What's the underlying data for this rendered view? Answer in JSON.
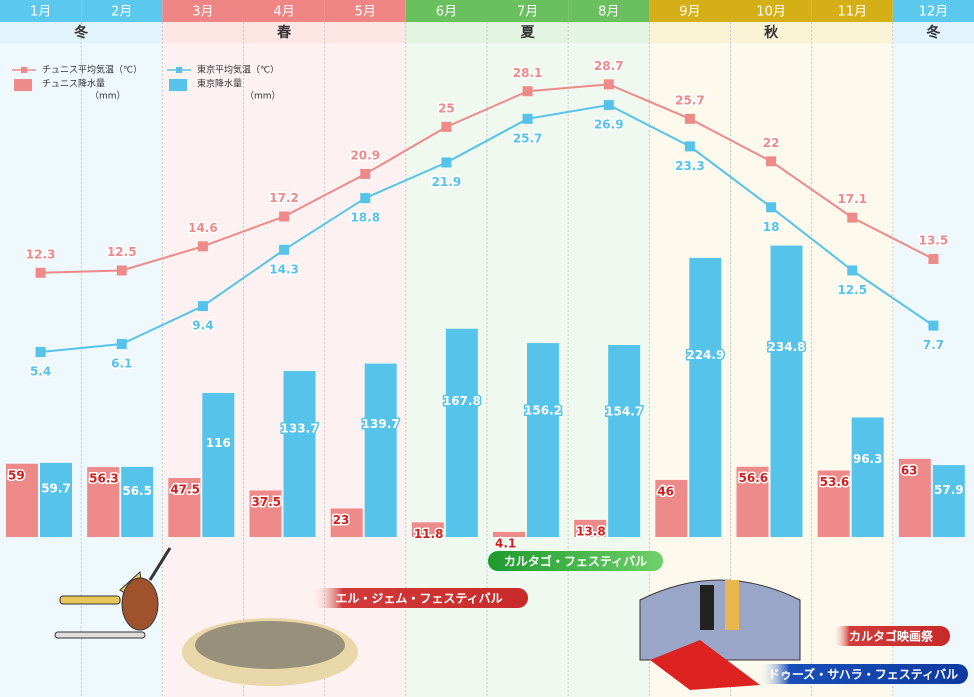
{
  "chart_data": {
    "type": "climate",
    "categories": [
      "1月",
      "2月",
      "3月",
      "4月",
      "5月",
      "6月",
      "7月",
      "8月",
      "9月",
      "10月",
      "11月",
      "12月"
    ],
    "seasons": [
      "冬",
      "春",
      "夏",
      "秋",
      "冬"
    ],
    "precip_unit": "（mm）",
    "ylim": [
      -10.7,
      32.3
    ],
    "y2lim": [
      0,
      398
    ],
    "series": [
      {
        "name": "チュニス平均気温（℃）",
        "color": "#ee8a8a",
        "kind": "line",
        "values": [
          12.3,
          12.5,
          14.6,
          17.2,
          20.9,
          25.0,
          28.1,
          28.7,
          25.7,
          22.0,
          17.1,
          13.5
        ]
      },
      {
        "name": "東京平均気温（℃）",
        "color": "#56c3ea",
        "kind": "line",
        "values": [
          5.4,
          6.1,
          9.4,
          14.3,
          18.8,
          21.9,
          25.7,
          26.9,
          23.3,
          18.0,
          12.5,
          7.7
        ]
      },
      {
        "name": "チュニス降水量",
        "color": "#ee8a8a",
        "kind": "bar",
        "axis": "y2",
        "values": [
          59.0,
          56.3,
          47.5,
          37.5,
          23.0,
          11.8,
          4.1,
          13.8,
          46.0,
          56.6,
          53.6,
          63.0
        ]
      },
      {
        "name": "東京降水量",
        "color": "#56c3ea",
        "kind": "bar",
        "axis": "y2",
        "values": [
          59.7,
          56.5,
          116.0,
          133.7,
          139.7,
          167.8,
          156.2,
          154.7,
          224.9,
          234.8,
          96.3,
          57.9
        ]
      }
    ],
    "annotations": [
      "カルタゴ・フェスティバル",
      "エル・ジェム・フェスティバル",
      "カルタゴ映画祭",
      "ドゥーズ・サハラ・フェスティバル"
    ]
  }
}
